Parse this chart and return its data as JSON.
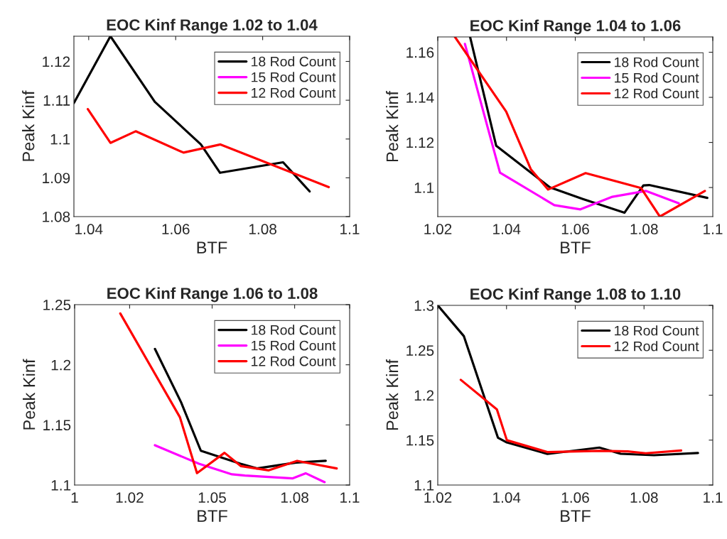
{
  "chart_data": [
    {
      "type": "line",
      "title": "EOC Kinf Range 1.02 to 1.04",
      "xlabel": "BTF",
      "ylabel": "Peak Kinf",
      "xlim": [
        1.0366,
        1.1
      ],
      "xticks": [
        1.04,
        1.06,
        1.08,
        1.1
      ],
      "ylim": [
        1.08,
        1.1265
      ],
      "yticks": [
        1.08,
        1.09,
        1.1,
        1.11,
        1.12
      ],
      "grid": false,
      "legend": "top right",
      "marker": "none",
      "line_style": "solid",
      "series": [
        {
          "name": "18 Rod Count",
          "color": "#000000",
          "x": [
            1.0366,
            1.045,
            1.0552,
            1.0658,
            1.0702,
            1.0847,
            1.0908
          ],
          "values": [
            1.1093,
            1.1265,
            1.1096,
            1.0986,
            1.0913,
            1.094,
            1.0865
          ]
        },
        {
          "name": "15 Rod Count",
          "color": "#ff00ff"
        },
        {
          "name": "12 Rod Count",
          "color": "#ff0000",
          "x": [
            1.0398,
            1.045,
            1.0508,
            1.0618,
            1.0703,
            1.0952
          ],
          "values": [
            1.1077,
            1.099,
            1.102,
            1.0965,
            1.0986,
            1.0876
          ]
        }
      ]
    },
    {
      "type": "line",
      "title": "EOC Kinf Range 1.04 to 1.06",
      "xlabel": "BTF",
      "ylabel": "Peak Kinf",
      "xlim": [
        1.02,
        1.1
      ],
      "xticks": [
        1.02,
        1.04,
        1.06,
        1.08,
        1.1
      ],
      "ylim": [
        1.0871,
        1.1668
      ],
      "yticks": [
        1.1,
        1.12,
        1.14,
        1.16
      ],
      "grid": false,
      "legend": "top right",
      "marker": "none",
      "line_style": "solid",
      "series": [
        {
          "name": "18 Rod Count",
          "color": "#000000",
          "x": [
            1.0294,
            1.037,
            1.0526,
            1.0622,
            1.0743,
            1.0798,
            1.0815,
            1.0984
          ],
          "values": [
            1.1668,
            1.1185,
            1.1001,
            1.0949,
            1.0888,
            1.1009,
            1.1011,
            1.0954
          ]
        },
        {
          "name": "15 Rod Count",
          "color": "#ff00ff",
          "x": [
            1.0279,
            1.0381,
            1.0539,
            1.0615,
            1.0708,
            1.0805,
            1.0901
          ],
          "values": [
            1.1637,
            1.1066,
            1.0922,
            1.0903,
            1.0959,
            1.0985,
            1.093
          ]
        },
        {
          "name": "12 Rod Count",
          "color": "#ff0000",
          "x": [
            1.025,
            1.0399,
            1.0471,
            1.0521,
            1.063,
            1.0791,
            1.0846,
            1.0977
          ],
          "values": [
            1.1668,
            1.1337,
            1.108,
            1.0991,
            1.1064,
            1.0998,
            1.0871,
            1.0985
          ]
        }
      ]
    },
    {
      "type": "line",
      "title": "EOC Kinf Range 1.06 to 1.08",
      "xlabel": "BTF",
      "ylabel": "Peak Kinf",
      "xlim": [
        1,
        1.1
      ],
      "xticks": [
        1,
        1.02,
        1.05,
        1.08,
        1.1
      ],
      "ylim": [
        1.1,
        1.25
      ],
      "yticks": [
        1.1,
        1.15,
        1.2,
        1.25
      ],
      "grid": false,
      "legend": "top right",
      "marker": "none",
      "line_style": "solid",
      "series": [
        {
          "name": "18 Rod Count",
          "color": "#000000",
          "x": [
            1.0292,
            1.0387,
            1.0459,
            1.0603,
            1.0663,
            1.0805,
            1.0913
          ],
          "values": [
            1.2132,
            1.1689,
            1.1285,
            1.1177,
            1.1138,
            1.1187,
            1.1201
          ]
        },
        {
          "name": "15 Rod Count",
          "color": "#ff00ff",
          "x": [
            1.0292,
            1.0452,
            1.0572,
            1.0619,
            1.0792,
            1.084,
            1.0909
          ],
          "values": [
            1.1331,
            1.1177,
            1.1089,
            1.1079,
            1.1055,
            1.1098,
            1.1024
          ]
        },
        {
          "name": "12 Rod Count",
          "color": "#ff0000",
          "x": [
            1.0166,
            1.0383,
            1.0445,
            1.0545,
            1.0605,
            1.0706,
            1.0809,
            1.0953
          ],
          "values": [
            1.2427,
            1.1563,
            1.1099,
            1.1268,
            1.1157,
            1.1122,
            1.1201,
            1.1138
          ]
        }
      ]
    },
    {
      "type": "line",
      "title": "EOC Kinf Range 1.08 to 1.10",
      "xlabel": "BTF",
      "ylabel": "Peak Kinf",
      "xlim": [
        1.02,
        1.1
      ],
      "xticks": [
        1.02,
        1.04,
        1.06,
        1.08,
        1.1
      ],
      "ylim": [
        1.1,
        1.3
      ],
      "yticks": [
        1.1,
        1.15,
        1.2,
        1.25,
        1.3
      ],
      "grid": false,
      "legend": "top right",
      "marker": "none",
      "line_style": "solid",
      "series": [
        {
          "name": "18 Rod Count",
          "color": "#000000",
          "x": [
            1.02,
            1.0276,
            1.0375,
            1.0401,
            1.0519,
            1.067,
            1.0732,
            1.0829,
            1.0957
          ],
          "values": [
            1.3,
            1.2657,
            1.1527,
            1.1474,
            1.1346,
            1.1417,
            1.1348,
            1.1332,
            1.1356
          ]
        },
        {
          "name": "12 Rod Count",
          "color": "#ff0000",
          "x": [
            1.0267,
            1.0372,
            1.0401,
            1.0519,
            1.067,
            1.0752,
            1.0805,
            1.0908
          ],
          "values": [
            1.2171,
            1.1842,
            1.1499,
            1.1367,
            1.138,
            1.1375,
            1.1354,
            1.1385
          ]
        }
      ]
    }
  ]
}
